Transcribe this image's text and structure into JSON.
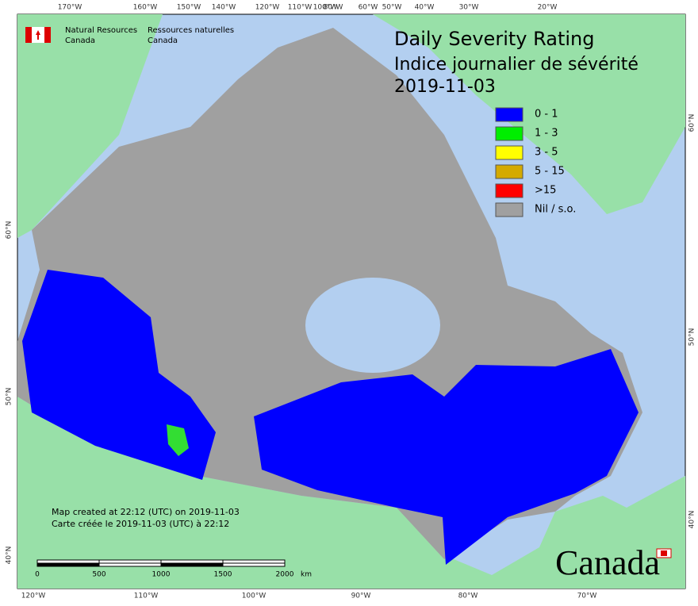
{
  "header": {
    "org_en": [
      "Natural Resources",
      "Canada"
    ],
    "org_fr": [
      "Ressources naturelles",
      "Canada"
    ]
  },
  "title": [
    "Daily Severity Rating",
    "Indice journalier de sévérité",
    "2019-11-03"
  ],
  "legend": [
    {
      "label": "0 - 1",
      "color": "#0000ff"
    },
    {
      "label": "1 - 3",
      "color": "#00ee00"
    },
    {
      "label": "3 - 5",
      "color": "#ffff00"
    },
    {
      "label": "5 - 15",
      "color": "#d4aa00"
    },
    {
      "label": ">15",
      "color": "#ff0000"
    },
    {
      "label": "Nil / s.o.",
      "color": "#a0a0a0"
    }
  ],
  "graticule": {
    "top": [
      "170°W",
      "160°W",
      "150°W",
      "140°W",
      "120°W",
      "110°W",
      "100°W",
      "80°W",
      "60°W",
      "50°W",
      "40°W",
      "30°W",
      "20°W"
    ],
    "bottom": [
      "120°W",
      "110°W",
      "100°W",
      "90°W",
      "80°W",
      "70°W"
    ],
    "left": [
      "60°N",
      "50°N",
      "40°N"
    ],
    "right": [
      "60°N",
      "50°N",
      "40°N"
    ]
  },
  "footer": [
    "Map created at 22:12 (UTC) on 2019-11-03",
    "Carte créée le 2019-11-03 (UTC) à 22:12"
  ],
  "scale_bar": {
    "ticks": [
      "0",
      "500",
      "1000",
      "1500",
      "2000"
    ],
    "unit": "km"
  },
  "wordmark": "Canada"
}
